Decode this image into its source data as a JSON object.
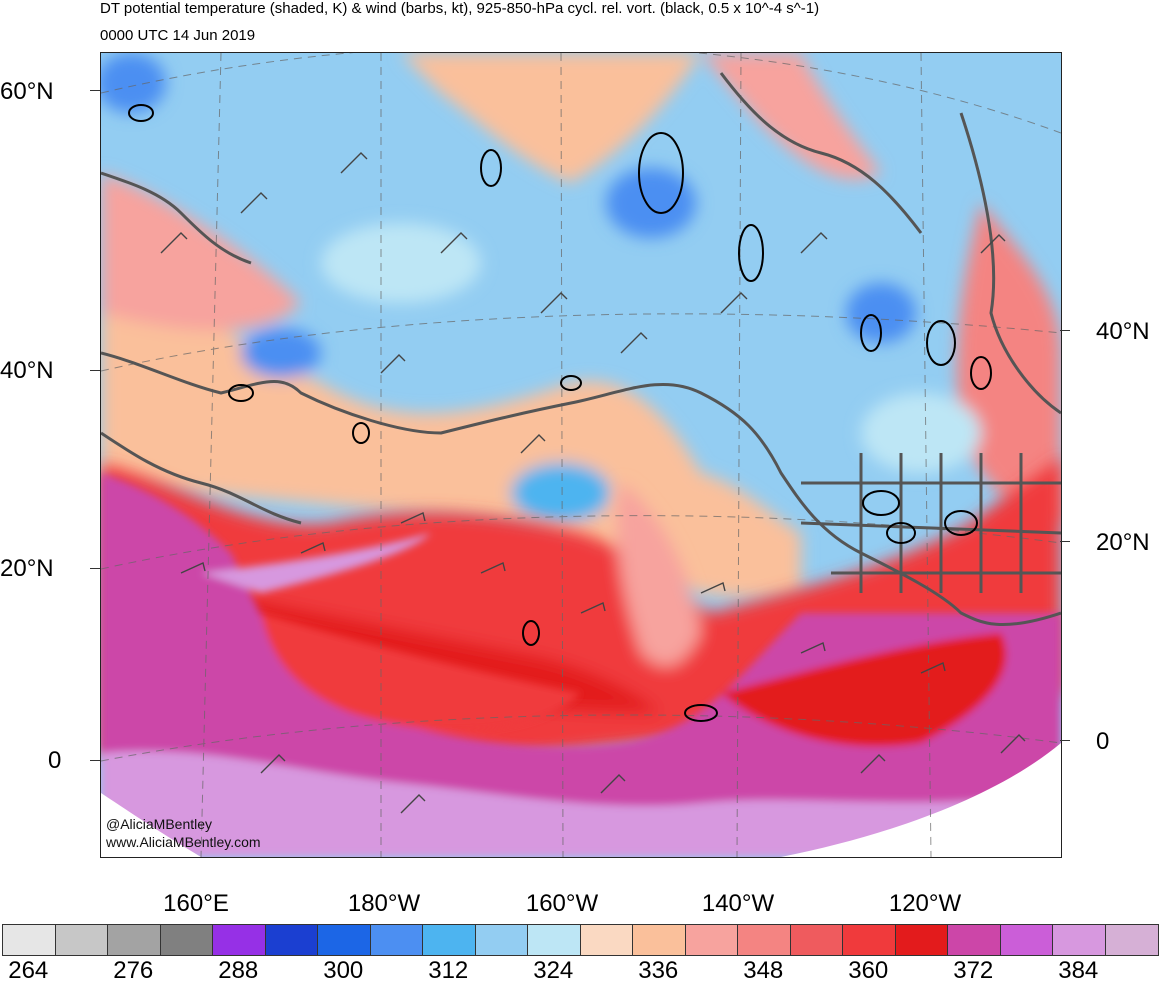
{
  "title": "DT potential temperature (shaded, K) & wind (barbs, kt), 925-850-hPa cycl. rel. vort. (black, 0.5 x 10^-4 s^-1)",
  "valid_time": "0000 UTC 14 Jun 2019",
  "lat_labels_left": [
    "60°N",
    "40°N",
    "20°N",
    "0"
  ],
  "lat_labels_right": [
    "40°N",
    "20°N",
    "0"
  ],
  "lon_labels": [
    "160°E",
    "180°W",
    "160°W",
    "140°W",
    "120°W"
  ],
  "credit": {
    "twitter": "@AliciaMBentley",
    "website": "www.AliciaMBentley.com"
  },
  "colorbar": {
    "colors": [
      "#e6e6e6",
      "#c7c7c7",
      "#a3a3a3",
      "#808080",
      "#9630e6",
      "#1b3fd1",
      "#1c66e6",
      "#4c8ff2",
      "#4db4f0",
      "#93cdf2",
      "#bde6f5",
      "#fad9c2",
      "#fac09b",
      "#f7a39e",
      "#f48482",
      "#ef5b5e",
      "#f03a3c",
      "#e31b1c",
      "#cc46a8",
      "#cb5ed8",
      "#d798df",
      "#d6b0d6"
    ],
    "labels": [
      "264",
      "276",
      "288",
      "300",
      "312",
      "324",
      "336",
      "348",
      "360",
      "372",
      "384"
    ]
  },
  "map_colors": {
    "cold_blue": "#4c8ff2",
    "light_blue": "#93cdf2",
    "pale_blue": "#bde6f5",
    "peach": "#fac09b",
    "salmon": "#f7a39e",
    "red": "#f03a3c",
    "deep_red": "#e31b1c",
    "magenta": "#cc46a8",
    "lilac": "#d798df",
    "coast": "#555555",
    "contour": "#000000"
  }
}
